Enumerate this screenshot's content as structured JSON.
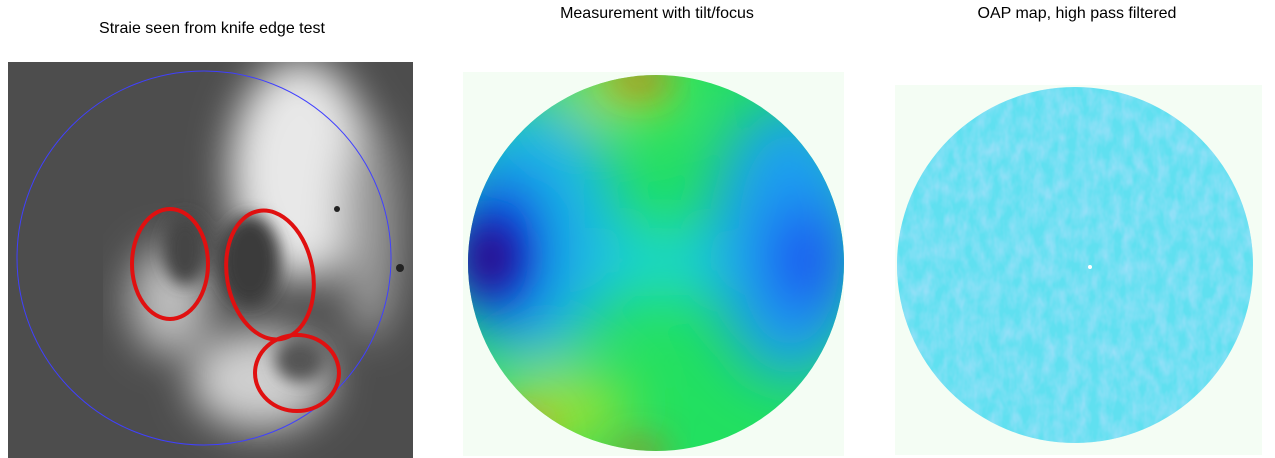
{
  "panels": [
    {
      "caption": "Straie seen from knife edge test"
    },
    {
      "caption": "Measurement with tilt/focus"
    },
    {
      "caption": "OAP map, high pass filtered"
    }
  ]
}
